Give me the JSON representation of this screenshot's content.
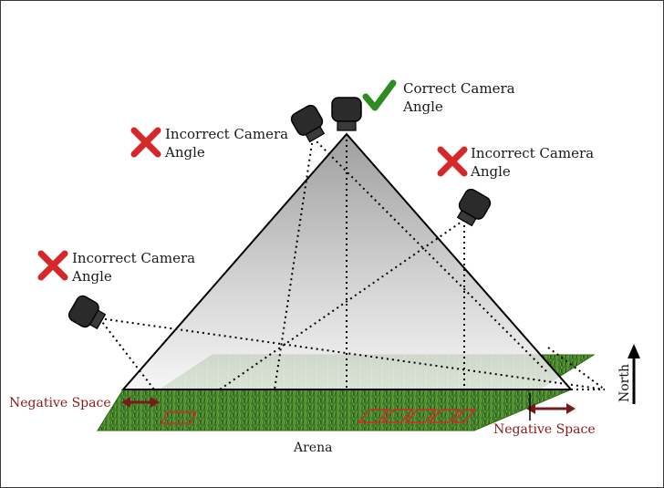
{
  "labels": {
    "correct_line1": "Correct Camera",
    "correct_line2": "Angle",
    "incorrect_left_line1": "Incorrect Camera",
    "incorrect_left_line2": "Angle",
    "incorrect_topleft_line1": "Incorrect Camera",
    "incorrect_topleft_line2": "Angle",
    "incorrect_right_line1": "Incorrect Camera",
    "incorrect_right_line2": "Angle",
    "negative_space_left": "Negative Space",
    "negative_space_right": "Negative Space",
    "arena": "Arena",
    "north": "North"
  },
  "colors": {
    "grass": "#3f7a2a",
    "grass_border": "#2f6a1c",
    "cross": "#d62828",
    "check": "#2e8b22",
    "arrow": "#7a1a1a",
    "negative_space_text": "#8b1a1a",
    "camera": "#2b2b2b"
  },
  "icons": [
    "camera-icon",
    "check-icon",
    "cross-icon",
    "north-arrow-icon"
  ]
}
